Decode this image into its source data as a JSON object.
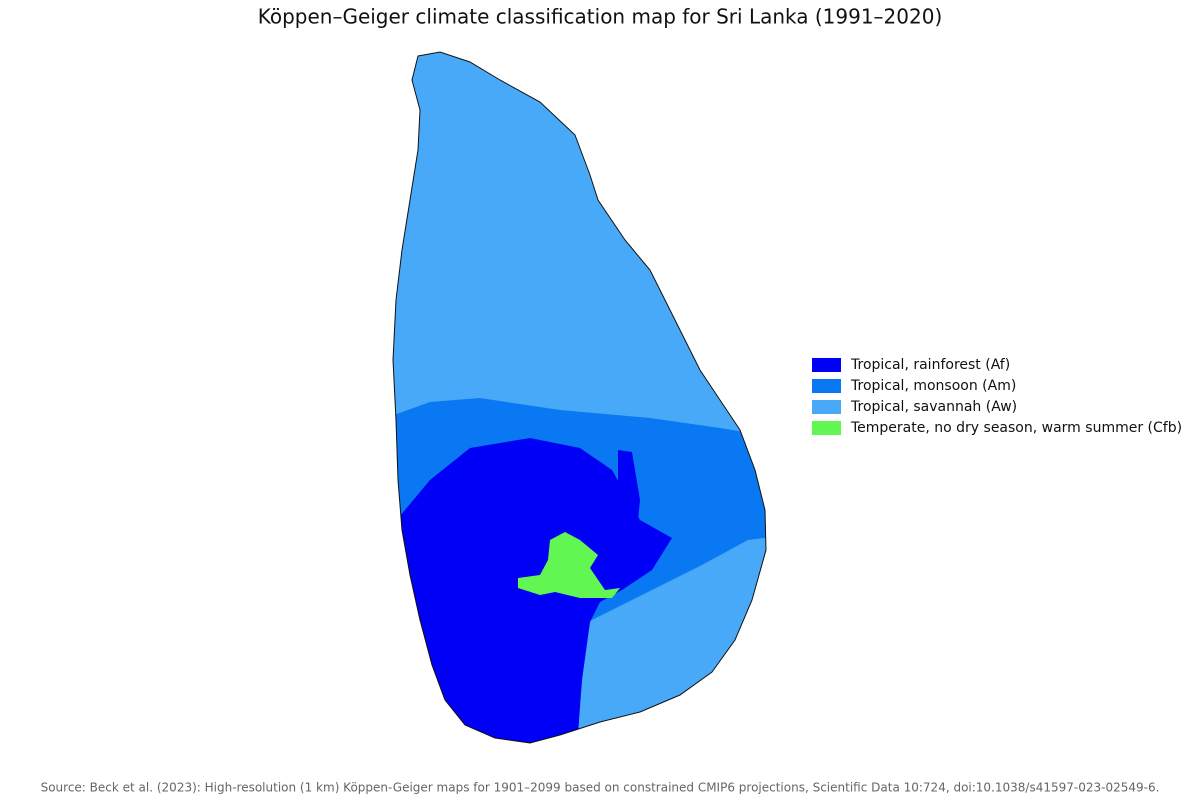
{
  "title": "Köppen–Geiger climate classification map for Sri Lanka (1991–2020)",
  "legend": [
    {
      "label": "Tropical, rainforest (Af)",
      "color": "#0000f6"
    },
    {
      "label": "Tropical, monsoon (Am)",
      "color": "#0a78f2"
    },
    {
      "label": "Tropical, savannah (Aw)",
      "color": "#48a9f8"
    },
    {
      "label": "Temperate, no dry season, warm summer (Cfb)",
      "color": "#62f653"
    }
  ],
  "source": "Source: Beck et al. (2023): High-resolution (1 km) Köppen-Geiger maps for 1901–2099 based on constrained CMIP6 projections, Scientific Data 10:724, doi:10.1038/s41597-023-02549-6."
}
